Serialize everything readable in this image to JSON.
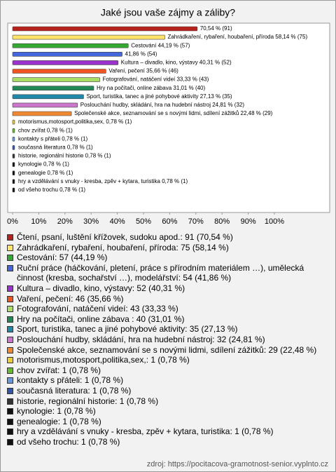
{
  "chart_data": {
    "type": "bar",
    "orientation": "horizontal",
    "title": "Jaké jsou vaše zájmy a záliby?",
    "values": [
      70.54,
      58.14,
      44.19,
      41.86,
      40.31,
      35.66,
      33.33,
      31.01,
      27.13,
      24.81,
      22.48,
      0.78,
      0.78,
      0.78,
      0.78,
      0.78,
      0.78,
      0.78,
      0.78,
      0.78
    ],
    "value_labels": [
      "70,54 % (91)",
      "Zahrádkaření, rybaření, houbaření, příroda 58,14 % (75)",
      "Cestování 44,19 % (57)",
      "41,86 % (54)",
      "Kultura – divadlo, kino, výstavy 40,31 % (52)",
      "Vaření, pečení 35,66 % (46)",
      "Fotografování, natáčení videí 33,33 % (43)",
      "Hry na počítači, online zábava 31,01 % (40)",
      "Sport, turistika, tanec a jiné pohybové aktivity 27,13 % (35)",
      "Poslouchání hudby, skládání, hra na hudební nástroj 24,81 % (32)",
      "Společenské akce, seznamování se s novými lidmi, sdílení zážitků 22,48 % (29)",
      "motorismus,motosport,politika,sex, 0,78 % (1)",
      "chov zvířat 0,78 % (1)",
      "kontakty s přáteli 0,78 % (1)",
      "současná literatura 0,78 % (1)",
      "historie, regionální historie 0,78 % (1)",
      "kynologie 0,78 % (1)",
      "genealogie 0,78 % (1)",
      "hry a vzdělávání s vnuky - kresba, zpěv + kytara, turistika 0,78 % (1)",
      "od všeho trochu 0,78 % (1)"
    ],
    "legend_labels": [
      "Čtení, psaní, luštění křížovek, sudoku apod.: 91 (70,54 %)",
      "Zahrádkaření, rybaření, houbaření, příroda: 75 (58,14 %)",
      "Cestování: 57 (44,19 %)",
      "Ruční práce (háčkování, pletení, práce s přírodním materiálem …), umělecká činnost (kresba, sochařství …), modelářství: 54 (41,86 %)",
      "Kultura – divadlo, kino, výstavy: 52 (40,31 %)",
      "Vaření, pečení: 46 (35,66 %)",
      "Fotografování, natáčení videí: 43 (33,33 %)",
      "Hry na počítači, online zábava : 40 (31,01 %)",
      "Sport, turistika, tanec a jiné pohybové aktivity: 35 (27,13 %)",
      "Poslouchání hudby, skládání, hra na hudební nástroj: 32 (24,81 %)",
      "Společenské akce, seznamování se s novými lidmi, sdílení zážitků: 29 (22,48 %)",
      "motorismus,motosport,politika,sex,: 1 (0,78 %)",
      "chov zvířat: 1 (0,78 %)",
      "kontakty s přáteli: 1 (0,78 %)",
      "současná literatura: 1 (0,78 %)",
      "historie, regionální historie: 1 (0,78 %)",
      "kynologie: 1 (0,78 %)",
      "genealogie: 1 (0,78 %)",
      "hry a vzdělávání s vnuky - kresba, zpěv + kytara, turistika: 1 (0,78 %)",
      "od všeho trochu: 1 (0,78 %)"
    ],
    "colors": [
      "#b8221c",
      "#ffe36a",
      "#33a833",
      "#4466dd",
      "#9933cc",
      "#ee5522",
      "#aadd66",
      "#228855",
      "#2288aa",
      "#cc77cc",
      "#ee8833",
      "#eecc33",
      "#66bb33",
      "#6699dd",
      "#3355aa",
      "#333333",
      "#111111",
      "#111111",
      "#111111",
      "#111111"
    ],
    "xlim": [
      0,
      100
    ],
    "xticks": [
      {
        "value": 0,
        "label": "0%"
      },
      {
        "value": 10,
        "label": "10%"
      },
      {
        "value": 20,
        "label": "20%"
      },
      {
        "value": 30,
        "label": "30%"
      },
      {
        "value": 40,
        "label": "40%"
      },
      {
        "value": 50,
        "label": "50%"
      },
      {
        "value": 60,
        "label": "60%"
      },
      {
        "value": 70,
        "label": "70%"
      },
      {
        "value": 80,
        "label": "80%"
      },
      {
        "value": 90,
        "label": "90%"
      },
      {
        "value": 100,
        "label": "100%"
      }
    ],
    "source": "zdroj: https://pocitacova-gramotnost-senior.vyplnto.cz"
  }
}
